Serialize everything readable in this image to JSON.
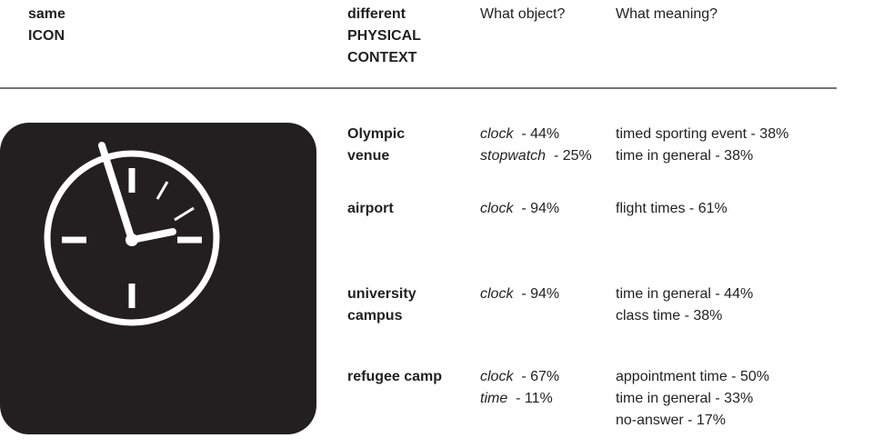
{
  "header": {
    "icon": [
      "same",
      "ICON"
    ],
    "context": [
      "different",
      "PHYSICAL",
      "CONTEXT"
    ],
    "object": "What object?",
    "meaning": "What meaning?"
  },
  "rows": [
    {
      "context": [
        "Olympic",
        "venue"
      ],
      "objects": [
        {
          "name": "clock",
          "share": "- 44%"
        },
        {
          "name": "stopwatch",
          "share": "- 25%"
        }
      ],
      "meanings": [
        "timed sporting event - 38%",
        "time in general - 38%"
      ]
    },
    {
      "context": [
        "airport"
      ],
      "objects": [
        {
          "name": "clock",
          "share": "- 94%"
        }
      ],
      "meanings": [
        "flight times - 61%"
      ]
    },
    {
      "context": [
        "university",
        "campus"
      ],
      "objects": [
        {
          "name": "clock",
          "share": "- 94%"
        }
      ],
      "meanings": [
        "time in general - 44%",
        "class time - 38%"
      ]
    },
    {
      "context": [
        "refugee camp"
      ],
      "objects": [
        {
          "name": "clock",
          "share": "- 67%"
        },
        {
          "name": "time",
          "share": "- 11%"
        }
      ],
      "meanings": [
        "appointment time - 50%",
        "time in general - 33%",
        "no-answer - 17%"
      ]
    }
  ]
}
